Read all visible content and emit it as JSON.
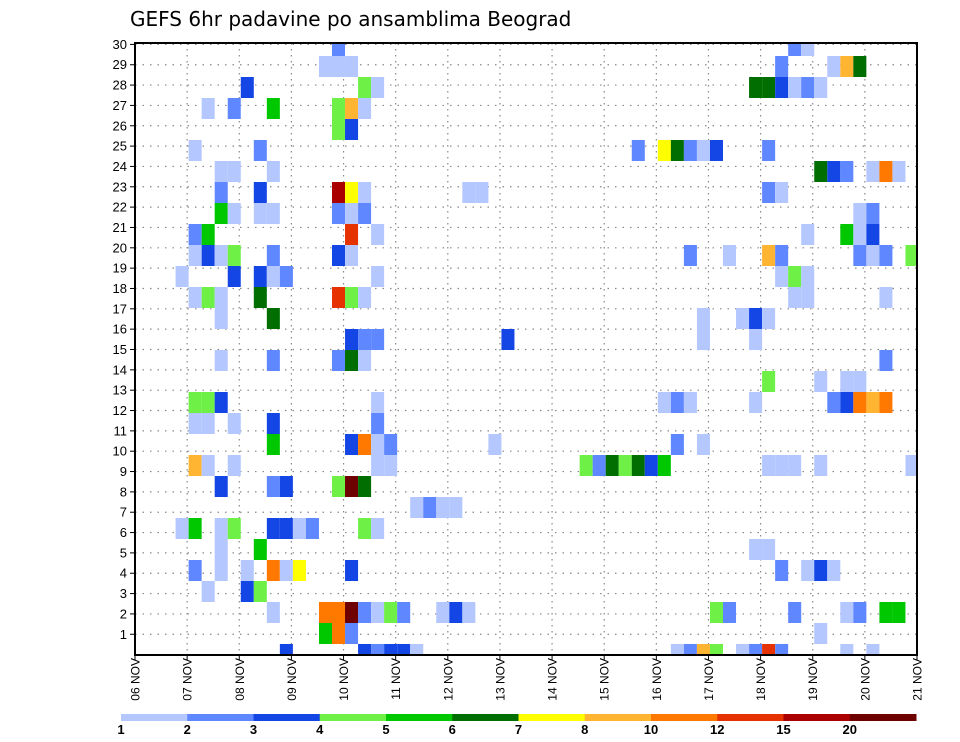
{
  "chart_data": {
    "type": "heatmap",
    "title": "GEFS 6hr padavine po ansamblima Beograd",
    "xlabel": "",
    "ylabel": "",
    "x_tick_labels": [
      "06 NOV",
      "07 NOV",
      "08 NOV",
      "09 NOV",
      "10 NOV",
      "11 NOV",
      "12 NOV",
      "13 NOV",
      "14 NOV",
      "15 NOV",
      "16 NOV",
      "17 NOV",
      "18 NOV",
      "19 NOV",
      "20 NOV",
      "21 NOV"
    ],
    "x_steps_per_day": 4,
    "x_step_hours": 6,
    "y_tick_labels": [
      "1",
      "2",
      "3",
      "4",
      "5",
      "6",
      "7",
      "8",
      "9",
      "10",
      "11",
      "12",
      "13",
      "14",
      "15",
      "16",
      "17",
      "18",
      "19",
      "20",
      "21",
      "22",
      "23",
      "24",
      "25",
      "26",
      "27",
      "28",
      "29",
      "30"
    ],
    "y_range": [
      0,
      30
    ],
    "grid": true,
    "colorbar": {
      "placement": "bottom",
      "labels": [
        "1",
        "2",
        "3",
        "4",
        "5",
        "6",
        "7",
        "8",
        "10",
        "12",
        "15",
        "20"
      ],
      "levels": [
        1,
        2,
        3,
        4,
        5,
        6,
        7,
        8,
        10,
        12,
        15,
        20
      ],
      "colors": [
        "#b4c8ff",
        "#5f87ff",
        "#1446e6",
        "#6ef046",
        "#00c800",
        "#006e00",
        "#ffff00",
        "#ffb432",
        "#ff7800",
        "#e63200",
        "#aa0000",
        "#6e0000"
      ]
    },
    "cell_fields": [
      "time_step",
      "member",
      "precip_mm"
    ],
    "cells": [
      [
        15,
        29,
        2.5
      ],
      [
        50,
        29,
        2.5
      ],
      [
        51,
        29,
        1.5
      ],
      [
        14,
        28,
        1.5
      ],
      [
        15,
        28,
        1.5
      ],
      [
        16,
        28,
        1.5
      ],
      [
        49,
        28,
        2.5
      ],
      [
        53,
        28,
        1.5
      ],
      [
        54,
        28,
        9
      ],
      [
        55,
        28,
        6.5
      ],
      [
        8,
        27,
        3.5
      ],
      [
        17,
        27,
        4.5
      ],
      [
        18,
        27,
        1.5
      ],
      [
        47,
        27,
        6.5
      ],
      [
        48,
        27,
        6.5
      ],
      [
        49,
        27,
        3.5
      ],
      [
        50,
        27,
        1.5
      ],
      [
        51,
        27,
        2.5
      ],
      [
        52,
        27,
        1.5
      ],
      [
        5,
        26,
        1.5
      ],
      [
        7,
        26,
        2.5
      ],
      [
        10,
        26,
        5.5
      ],
      [
        15,
        26,
        4.5
      ],
      [
        16,
        26,
        9
      ],
      [
        17,
        26,
        1.5
      ],
      [
        15,
        25,
        4.5
      ],
      [
        16,
        25,
        3.5
      ],
      [
        4,
        24,
        1.5
      ],
      [
        9,
        24,
        2.5
      ],
      [
        38,
        24,
        2.5
      ],
      [
        40,
        24,
        7.5
      ],
      [
        41,
        24,
        6.5
      ],
      [
        42,
        24,
        2.5
      ],
      [
        43,
        24,
        1.5
      ],
      [
        44,
        24,
        3.5
      ],
      [
        48,
        24,
        2.5
      ],
      [
        6,
        23,
        1.5
      ],
      [
        7,
        23,
        1.5
      ],
      [
        10,
        23,
        1.5
      ],
      [
        52,
        23,
        6.5
      ],
      [
        53,
        23,
        3.5
      ],
      [
        54,
        23,
        2.5
      ],
      [
        56,
        23,
        1.5
      ],
      [
        57,
        23,
        11
      ],
      [
        58,
        23,
        1.5
      ],
      [
        6,
        22,
        2.5
      ],
      [
        9,
        22,
        3.5
      ],
      [
        15,
        22,
        17.5
      ],
      [
        16,
        22,
        7.5
      ],
      [
        17,
        22,
        1.5
      ],
      [
        25,
        22,
        1.5
      ],
      [
        26,
        22,
        1.5
      ],
      [
        48,
        22,
        2.5
      ],
      [
        49,
        22,
        1.5
      ],
      [
        6,
        21,
        5.5
      ],
      [
        7,
        21,
        1.5
      ],
      [
        9,
        21,
        1.5
      ],
      [
        10,
        21,
        1.5
      ],
      [
        15,
        21,
        2.5
      ],
      [
        16,
        21,
        1.5
      ],
      [
        17,
        21,
        2.5
      ],
      [
        55,
        21,
        1.5
      ],
      [
        56,
        21,
        2.5
      ],
      [
        4,
        20,
        2.5
      ],
      [
        5,
        20,
        5.5
      ],
      [
        16,
        20,
        13.5
      ],
      [
        18,
        20,
        1.5
      ],
      [
        51,
        20,
        1.5
      ],
      [
        54,
        20,
        5.5
      ],
      [
        55,
        20,
        1.5
      ],
      [
        56,
        20,
        3.5
      ],
      [
        4,
        19,
        1.5
      ],
      [
        5,
        19,
        3.5
      ],
      [
        6,
        19,
        1.5
      ],
      [
        7,
        19,
        4.5
      ],
      [
        10,
        19,
        2.5
      ],
      [
        15,
        19,
        3.5
      ],
      [
        16,
        19,
        1.5
      ],
      [
        42,
        19,
        2.5
      ],
      [
        45,
        19,
        1.5
      ],
      [
        48,
        19,
        9
      ],
      [
        49,
        19,
        2.5
      ],
      [
        55,
        19,
        2.5
      ],
      [
        56,
        19,
        1.5
      ],
      [
        57,
        19,
        2.5
      ],
      [
        59,
        19,
        4.5
      ],
      [
        3,
        18,
        1.5
      ],
      [
        7,
        18,
        3.5
      ],
      [
        9,
        18,
        3.5
      ],
      [
        10,
        18,
        1.5
      ],
      [
        11,
        18,
        2.5
      ],
      [
        18,
        18,
        1.5
      ],
      [
        49,
        18,
        1.5
      ],
      [
        50,
        18,
        4.5
      ],
      [
        51,
        18,
        1.5
      ],
      [
        4,
        17,
        1.5
      ],
      [
        5,
        17,
        4.5
      ],
      [
        6,
        17,
        1.5
      ],
      [
        9,
        17,
        6.5
      ],
      [
        15,
        17,
        13.5
      ],
      [
        16,
        17,
        4.5
      ],
      [
        17,
        17,
        1.5
      ],
      [
        50,
        17,
        1.5
      ],
      [
        51,
        17,
        1.5
      ],
      [
        57,
        17,
        1.5
      ],
      [
        6,
        16,
        1.5
      ],
      [
        10,
        16,
        6.5
      ],
      [
        43,
        16,
        1.5
      ],
      [
        46,
        16,
        1.5
      ],
      [
        47,
        16,
        3.5
      ],
      [
        48,
        16,
        1.5
      ],
      [
        16,
        15,
        3.5
      ],
      [
        17,
        15,
        2.5
      ],
      [
        18,
        15,
        2.5
      ],
      [
        28,
        15,
        3.5
      ],
      [
        43,
        15,
        1.5
      ],
      [
        47,
        15,
        1.5
      ],
      [
        6,
        14,
        1.5
      ],
      [
        10,
        14,
        2.5
      ],
      [
        15,
        14,
        2.5
      ],
      [
        16,
        14,
        6.5
      ],
      [
        17,
        14,
        1.5
      ],
      [
        57,
        14,
        2.5
      ],
      [
        48,
        13,
        4.5
      ],
      [
        52,
        13,
        1.5
      ],
      [
        54,
        13,
        1.5
      ],
      [
        55,
        13,
        1.5
      ],
      [
        4,
        12,
        4.5
      ],
      [
        5,
        12,
        4.5
      ],
      [
        6,
        12,
        3.5
      ],
      [
        18,
        12,
        1.5
      ],
      [
        40,
        12,
        1.5
      ],
      [
        41,
        12,
        2.5
      ],
      [
        42,
        12,
        1.5
      ],
      [
        47,
        12,
        1.5
      ],
      [
        53,
        12,
        2.5
      ],
      [
        54,
        12,
        3.5
      ],
      [
        55,
        12,
        11
      ],
      [
        56,
        12,
        9
      ],
      [
        57,
        12,
        11
      ],
      [
        4,
        11,
        1.5
      ],
      [
        5,
        11,
        1.5
      ],
      [
        7,
        11,
        1.5
      ],
      [
        10,
        11,
        3.5
      ],
      [
        18,
        11,
        2.5
      ],
      [
        10,
        10,
        5.5
      ],
      [
        16,
        10,
        3.5
      ],
      [
        17,
        10,
        11
      ],
      [
        18,
        10,
        1.5
      ],
      [
        19,
        10,
        2.5
      ],
      [
        27,
        10,
        1.5
      ],
      [
        41,
        10,
        2.5
      ],
      [
        43,
        10,
        1.5
      ],
      [
        4,
        9,
        9
      ],
      [
        5,
        9,
        1.5
      ],
      [
        7,
        9,
        1.5
      ],
      [
        18,
        9,
        1.5
      ],
      [
        19,
        9,
        1.5
      ],
      [
        34,
        9,
        4.5
      ],
      [
        35,
        9,
        2.5
      ],
      [
        36,
        9,
        6.5
      ],
      [
        37,
        9,
        4.5
      ],
      [
        38,
        9,
        6.5
      ],
      [
        39,
        9,
        3.5
      ],
      [
        40,
        9,
        5.5
      ],
      [
        48,
        9,
        1.5
      ],
      [
        49,
        9,
        1.5
      ],
      [
        50,
        9,
        1.5
      ],
      [
        52,
        9,
        1.5
      ],
      [
        59,
        9,
        1.5
      ],
      [
        6,
        8,
        3.5
      ],
      [
        10,
        8,
        2.5
      ],
      [
        11,
        8,
        3.5
      ],
      [
        15,
        8,
        4.5
      ],
      [
        16,
        8,
        22
      ],
      [
        17,
        8,
        6.5
      ],
      [
        21,
        7,
        1.5
      ],
      [
        22,
        7,
        2.5
      ],
      [
        23,
        7,
        1.5
      ],
      [
        24,
        7,
        1.5
      ],
      [
        3,
        6,
        1.5
      ],
      [
        4,
        6,
        5.5
      ],
      [
        6,
        6,
        1.5
      ],
      [
        7,
        6,
        4.5
      ],
      [
        10,
        6,
        3.5
      ],
      [
        11,
        6,
        3.5
      ],
      [
        12,
        6,
        1.5
      ],
      [
        13,
        6,
        2.5
      ],
      [
        17,
        6,
        4.5
      ],
      [
        18,
        6,
        1.5
      ],
      [
        6,
        5,
        1.5
      ],
      [
        9,
        5,
        5.5
      ],
      [
        47,
        5,
        1.5
      ],
      [
        48,
        5,
        1.5
      ],
      [
        4,
        4,
        2.5
      ],
      [
        6,
        4,
        1.5
      ],
      [
        8,
        4,
        1.5
      ],
      [
        10,
        4,
        11
      ],
      [
        11,
        4,
        1.5
      ],
      [
        12,
        4,
        7.5
      ],
      [
        16,
        4,
        3.5
      ],
      [
        49,
        4,
        2.5
      ],
      [
        51,
        4,
        1.5
      ],
      [
        52,
        4,
        3.5
      ],
      [
        53,
        4,
        1.5
      ],
      [
        5,
        3,
        1.5
      ],
      [
        8,
        3,
        3.5
      ],
      [
        9,
        3,
        4.5
      ],
      [
        10,
        2,
        1.5
      ],
      [
        14,
        2,
        11
      ],
      [
        15,
        2,
        11
      ],
      [
        16,
        2,
        22
      ],
      [
        17,
        2,
        2.5
      ],
      [
        18,
        2,
        1.5
      ],
      [
        19,
        2,
        4.5
      ],
      [
        20,
        2,
        2.5
      ],
      [
        23,
        2,
        1.5
      ],
      [
        24,
        2,
        3.5
      ],
      [
        25,
        2,
        1.5
      ],
      [
        44,
        2,
        4.5
      ],
      [
        45,
        2,
        2.5
      ],
      [
        50,
        2,
        2.5
      ],
      [
        54,
        2,
        1.5
      ],
      [
        55,
        2,
        2.5
      ],
      [
        57,
        2,
        5.5
      ],
      [
        58,
        2,
        5.5
      ],
      [
        14,
        1,
        5.5
      ],
      [
        15,
        1,
        11
      ],
      [
        16,
        1,
        2.5
      ],
      [
        52,
        1,
        1.5
      ],
      [
        11,
        0,
        3.5
      ],
      [
        17,
        0,
        3.5
      ],
      [
        18,
        0,
        2.5
      ],
      [
        19,
        0,
        3.5
      ],
      [
        20,
        0,
        3.5
      ],
      [
        21,
        0,
        1.5
      ],
      [
        41,
        0,
        1.5
      ],
      [
        42,
        0,
        2.5
      ],
      [
        43,
        0,
        9
      ],
      [
        44,
        0,
        4.5
      ],
      [
        46,
        0,
        1.5
      ],
      [
        47,
        0,
        2.5
      ],
      [
        48,
        0,
        13.5
      ],
      [
        49,
        0,
        2.5
      ],
      [
        54,
        0,
        1.5
      ],
      [
        56,
        0,
        1.5
      ]
    ]
  }
}
